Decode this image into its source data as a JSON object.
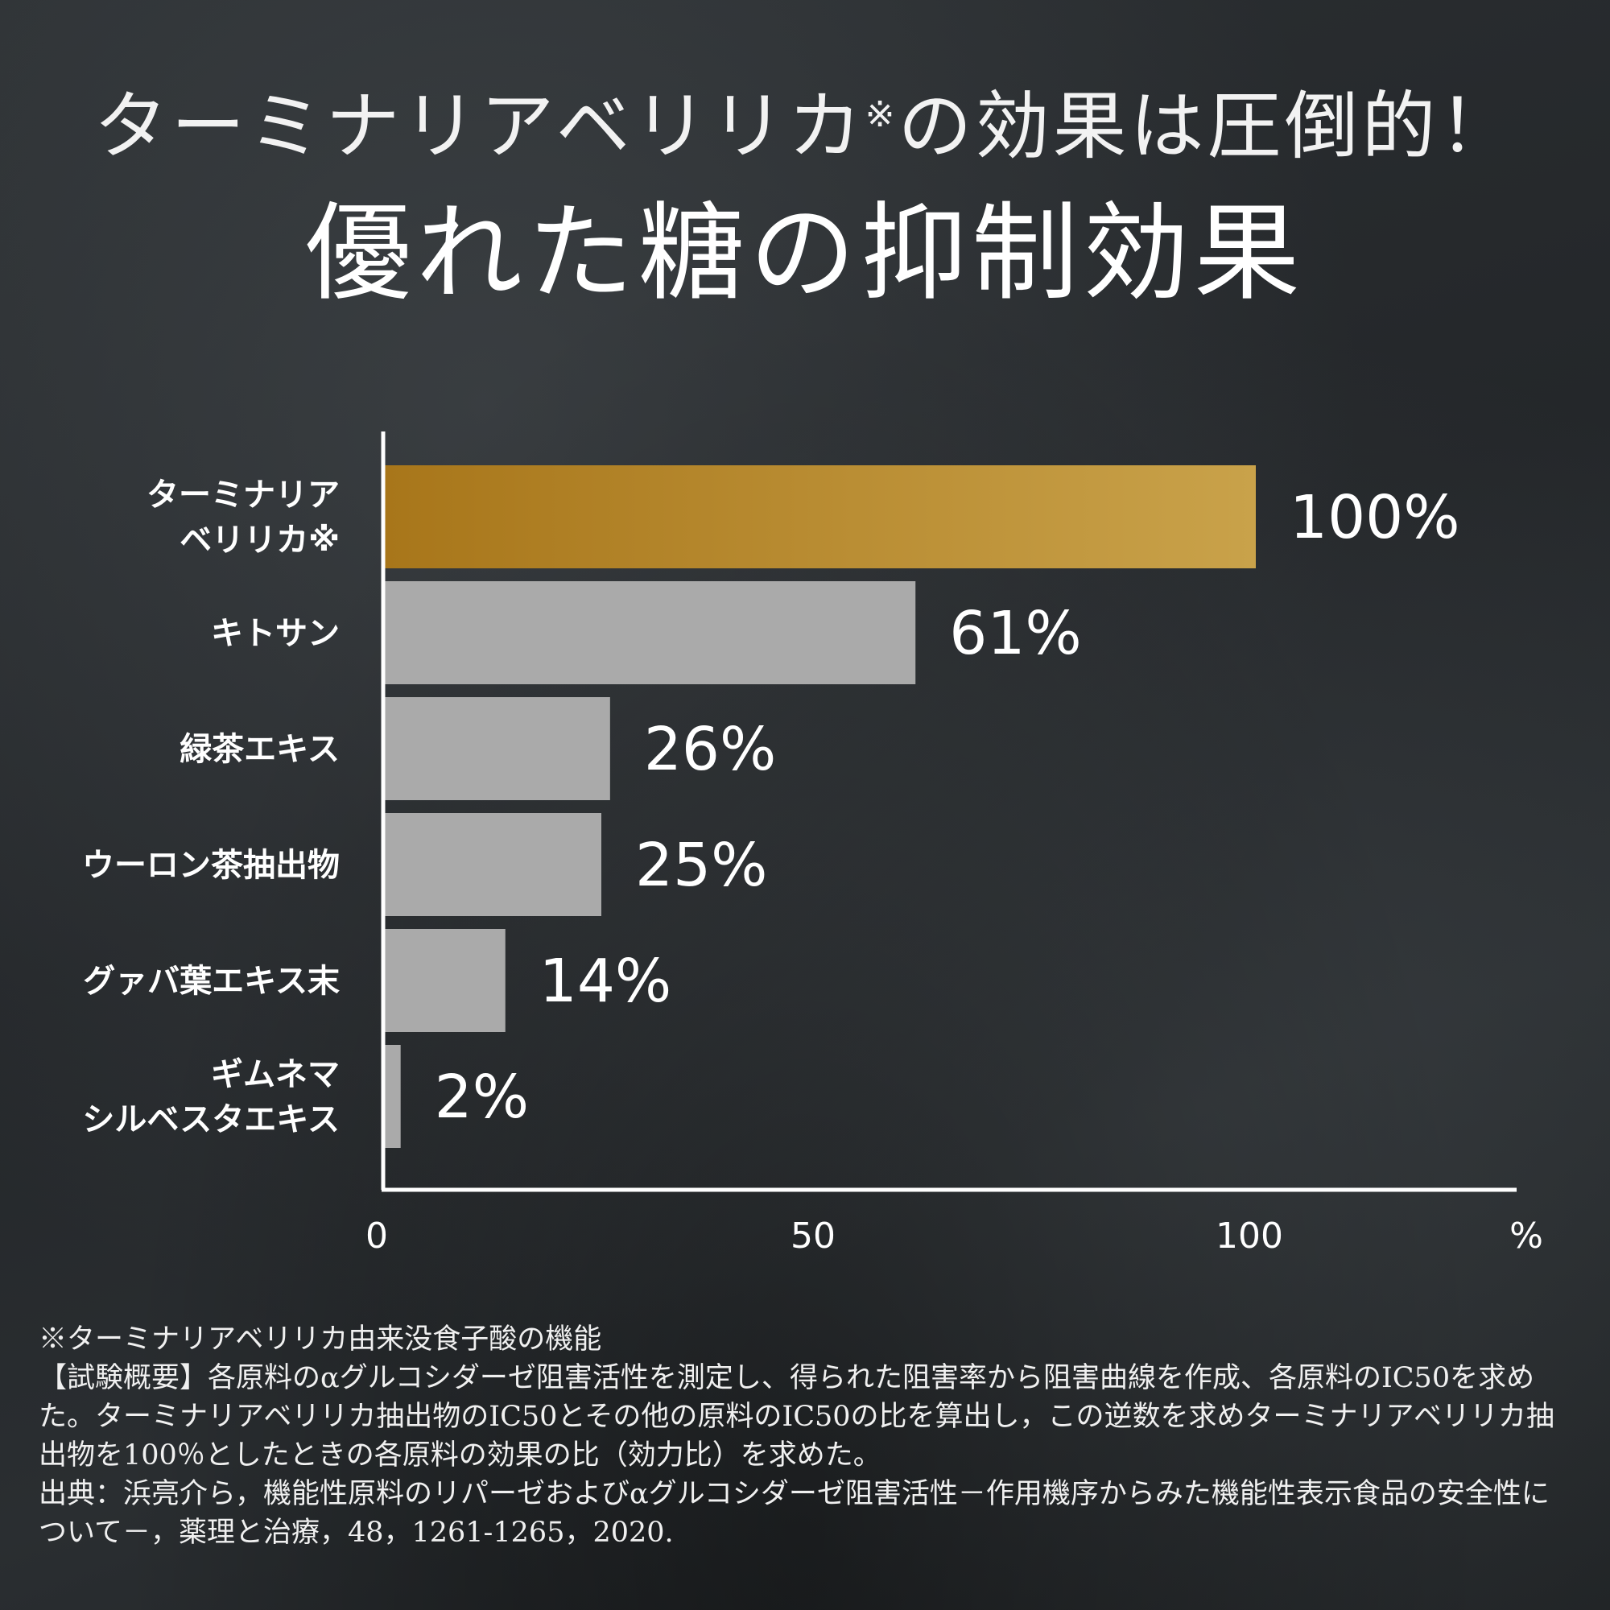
{
  "header": {
    "title_main": "ターミナリアベリリカ",
    "title_mark": "※",
    "title_rest": "の効果は圧倒的！",
    "subtitle": "優れた糖の抑制効果"
  },
  "colors": {
    "highlight_bar_start": "#a8761a",
    "highlight_bar_end": "#c9a24a",
    "bar": "#aaaaaa",
    "axis": "#ffffff",
    "text": "#ffffff"
  },
  "chart_data": {
    "type": "bar",
    "orientation": "horizontal",
    "categories": [
      [
        "ターミナリア",
        "ベリリカ※"
      ],
      [
        "キトサン"
      ],
      [
        "緑茶エキス"
      ],
      [
        "ウーロン茶抽出物"
      ],
      [
        "グァバ葉エキス末"
      ],
      [
        "ギムネマ",
        "シルベスタエキス"
      ]
    ],
    "values": [
      100,
      61,
      26,
      25,
      14,
      2
    ],
    "value_labels": [
      "100%",
      "61%",
      "26%",
      "25%",
      "14%",
      "2%"
    ],
    "highlight_index": 0,
    "xlim": [
      0,
      130
    ],
    "xticks": [
      0,
      50,
      100
    ],
    "xtick_labels": [
      "0",
      "50",
      "100"
    ],
    "xunit": "%",
    "grid": false
  },
  "footnotes": {
    "note": "※ターミナリアベリリカ由来没食子酸の機能",
    "method": "【試験概要】各原料のαグルコシダーゼ阻害活性を測定し、得られた阻害率から阻害曲線を作成、各原料のIC50を求めた。ターミナリアベリリカ抽出物のIC50とその他の原料のIC50の比を算出し，この逆数を求めターミナリアベリリカ抽出物を100％としたときの各原料の効果の比（効力比）を求めた。",
    "source": "出典：浜亮介ら，機能性原料のリパーゼおよびαグルコシダーゼ阻害活性－作用機序からみた機能性表示食品の安全性について－，薬理と治療，48，1261-1265，2020."
  }
}
